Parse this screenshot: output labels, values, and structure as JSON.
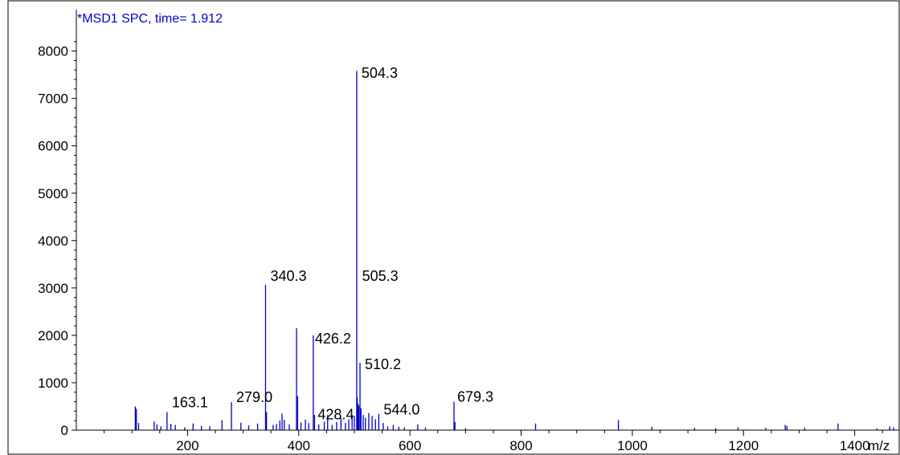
{
  "chart_data": {
    "type": "bar",
    "title": "*MSD1 SPC, time= 1.912",
    "xlabel": "m/z",
    "ylabel": "",
    "xlim": [
      0,
      1480
    ],
    "ylim": [
      0,
      8400
    ],
    "grid": false,
    "x_ticks": [
      200,
      400,
      600,
      800,
      1000,
      1200,
      1400
    ],
    "y_ticks": [
      0,
      1000,
      2000,
      3000,
      4000,
      5000,
      6000,
      7000,
      8000
    ],
    "colors": {
      "bars": "#0000cc",
      "axis": "#000000",
      "title": "#0000cc"
    },
    "peak_labels": [
      {
        "x": 504.3,
        "y": 7600,
        "text": "504.3"
      },
      {
        "x": 505.3,
        "y": 3050,
        "text": "505.3"
      },
      {
        "x": 340.3,
        "y": 3050,
        "text": "340.3"
      },
      {
        "x": 426.2,
        "y": 2000,
        "text": "426.2"
      },
      {
        "x": 510.2,
        "y": 1420,
        "text": "510.2"
      },
      {
        "x": 679.3,
        "y": 600,
        "text": "679.3"
      },
      {
        "x": 279.0,
        "y": 590,
        "text": "279.0"
      },
      {
        "x": 163.1,
        "y": 380,
        "text": "163.1"
      },
      {
        "x": 428.4,
        "y": 330,
        "text": "428.4"
      },
      {
        "x": 544.0,
        "y": 330,
        "text": "544.0"
      }
    ],
    "peaks": [
      {
        "x": 106,
        "y": 500
      },
      {
        "x": 108,
        "y": 450
      },
      {
        "x": 112,
        "y": 150
      },
      {
        "x": 140,
        "y": 180
      },
      {
        "x": 145,
        "y": 120
      },
      {
        "x": 152,
        "y": 80
      },
      {
        "x": 163.1,
        "y": 380
      },
      {
        "x": 170,
        "y": 130
      },
      {
        "x": 178,
        "y": 110
      },
      {
        "x": 195,
        "y": 60
      },
      {
        "x": 210,
        "y": 140
      },
      {
        "x": 225,
        "y": 90
      },
      {
        "x": 240,
        "y": 80
      },
      {
        "x": 262,
        "y": 210
      },
      {
        "x": 279.0,
        "y": 590
      },
      {
        "x": 296,
        "y": 160
      },
      {
        "x": 310,
        "y": 100
      },
      {
        "x": 326,
        "y": 140
      },
      {
        "x": 340.3,
        "y": 3070
      },
      {
        "x": 342,
        "y": 380
      },
      {
        "x": 354,
        "y": 110
      },
      {
        "x": 360,
        "y": 130
      },
      {
        "x": 366,
        "y": 200
      },
      {
        "x": 370,
        "y": 350
      },
      {
        "x": 374,
        "y": 220
      },
      {
        "x": 383,
        "y": 120
      },
      {
        "x": 396,
        "y": 2150
      },
      {
        "x": 398,
        "y": 720
      },
      {
        "x": 404,
        "y": 160
      },
      {
        "x": 412,
        "y": 220
      },
      {
        "x": 418,
        "y": 150
      },
      {
        "x": 426.2,
        "y": 2000
      },
      {
        "x": 428.4,
        "y": 320
      },
      {
        "x": 436,
        "y": 120
      },
      {
        "x": 446,
        "y": 180
      },
      {
        "x": 452,
        "y": 320
      },
      {
        "x": 460,
        "y": 110
      },
      {
        "x": 468,
        "y": 170
      },
      {
        "x": 476,
        "y": 260
      },
      {
        "x": 484,
        "y": 150
      },
      {
        "x": 490,
        "y": 230
      },
      {
        "x": 496,
        "y": 320
      },
      {
        "x": 500,
        "y": 300
      },
      {
        "x": 504.3,
        "y": 7580
      },
      {
        "x": 505.3,
        "y": 690
      },
      {
        "x": 506.5,
        "y": 560
      },
      {
        "x": 508,
        "y": 520
      },
      {
        "x": 510.2,
        "y": 1420
      },
      {
        "x": 512,
        "y": 460
      },
      {
        "x": 516,
        "y": 320
      },
      {
        "x": 520,
        "y": 260
      },
      {
        "x": 526,
        "y": 360
      },
      {
        "x": 532,
        "y": 300
      },
      {
        "x": 538,
        "y": 230
      },
      {
        "x": 544.0,
        "y": 340
      },
      {
        "x": 552,
        "y": 150
      },
      {
        "x": 560,
        "y": 80
      },
      {
        "x": 570,
        "y": 110
      },
      {
        "x": 580,
        "y": 70
      },
      {
        "x": 590,
        "y": 60
      },
      {
        "x": 614,
        "y": 120
      },
      {
        "x": 628,
        "y": 60
      },
      {
        "x": 679.3,
        "y": 600
      },
      {
        "x": 681,
        "y": 170
      },
      {
        "x": 700,
        "y": 40
      },
      {
        "x": 826,
        "y": 140
      },
      {
        "x": 975,
        "y": 210
      },
      {
        "x": 1035,
        "y": 70
      },
      {
        "x": 1112,
        "y": 50
      },
      {
        "x": 1150,
        "y": 40
      },
      {
        "x": 1190,
        "y": 60
      },
      {
        "x": 1240,
        "y": 50
      },
      {
        "x": 1275,
        "y": 110
      },
      {
        "x": 1278,
        "y": 90
      },
      {
        "x": 1310,
        "y": 50
      },
      {
        "x": 1370,
        "y": 140
      },
      {
        "x": 1440,
        "y": 40
      },
      {
        "x": 1463,
        "y": 80
      },
      {
        "x": 1470,
        "y": 60
      }
    ]
  }
}
